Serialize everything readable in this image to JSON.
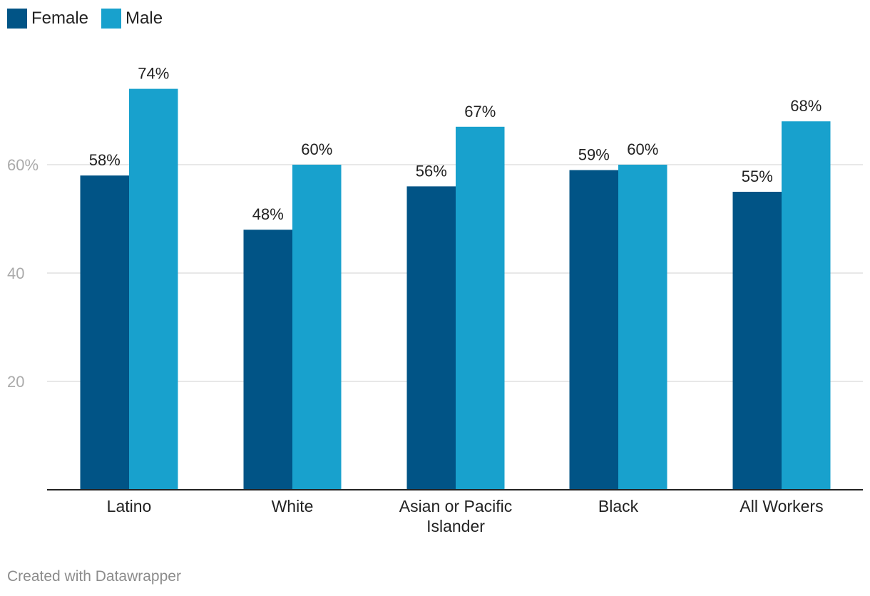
{
  "legend": {
    "items": [
      {
        "label": "Female",
        "color": "#015486"
      },
      {
        "label": "Male",
        "color": "#18a1cd"
      }
    ]
  },
  "footer": {
    "credit": "Created with Datawrapper"
  },
  "chart_data": {
    "type": "bar",
    "categories": [
      "Latino",
      "White",
      "Asian or Pacific Islander",
      "Black",
      "All Workers"
    ],
    "category_lines": [
      [
        "Latino"
      ],
      [
        "White"
      ],
      [
        "Asian or Pacific",
        "Islander"
      ],
      [
        "Black"
      ],
      [
        "All Workers"
      ]
    ],
    "series": [
      {
        "name": "Female",
        "color": "#015486",
        "values": [
          58,
          48,
          56,
          59,
          55
        ],
        "labels": [
          "58%",
          "48%",
          "56%",
          "59%",
          "55%"
        ]
      },
      {
        "name": "Male",
        "color": "#18a1cd",
        "values": [
          74,
          60,
          67,
          60,
          68
        ],
        "labels": [
          "74%",
          "60%",
          "67%",
          "60%",
          "68%"
        ]
      }
    ],
    "yticks": [
      {
        "value": 20,
        "label": "20"
      },
      {
        "value": 40,
        "label": "40"
      },
      {
        "value": 60,
        "label": "60%"
      }
    ],
    "ylim": [
      0,
      80
    ],
    "grid": true,
    "legend_position": "top-left"
  }
}
